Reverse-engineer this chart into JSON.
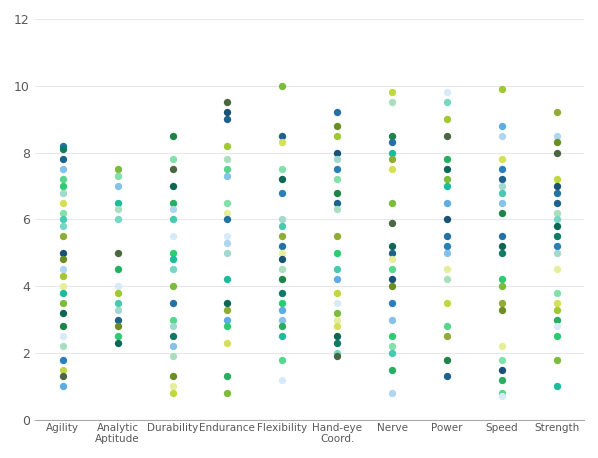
{
  "categories": [
    "Agility",
    "Analytic\nAptitude",
    "Durability",
    "Endurance",
    "Flexibility",
    "Hand-eye\nCoord.",
    "Nerve",
    "Power",
    "Speed",
    "Strength"
  ],
  "background_color": "#ffffff",
  "ylim": [
    0,
    12
  ],
  "yticks": [
    0,
    2,
    4,
    6,
    8,
    10,
    12
  ],
  "dot_size": 28,
  "dot_colors": [
    "#1f6b5e",
    "#217a47",
    "#2ca05a",
    "#3bba8c",
    "#4fc3a1",
    "#6dcfb0",
    "#8edcbf",
    "#b5e8d5",
    "#cef2e0",
    "#d8f0a0",
    "#c0d84a",
    "#a8c832",
    "#8bb520",
    "#6a9c10",
    "#4d7a08",
    "#2e5c04",
    "#1a4020",
    "#0f2e18",
    "#1a5c70",
    "#2080a0",
    "#30a8c8",
    "#50c0d8",
    "#80d8e8",
    "#a8e8f0",
    "#c0f0f8",
    "#4090c0",
    "#2070a0",
    "#104080"
  ],
  "series": {
    "Agility": [
      8.2,
      8.1,
      7.8,
      7.5,
      7.2,
      7.0,
      6.8,
      6.5,
      6.2,
      6.0,
      5.8,
      5.5,
      5.0,
      4.8,
      4.5,
      4.3,
      4.0,
      3.8,
      3.5,
      3.2,
      2.8,
      2.5,
      2.2,
      1.8,
      1.5,
      1.3,
      1.0
    ],
    "Analytic\nAptitude": [
      7.5,
      7.3,
      7.0,
      6.5,
      6.3,
      6.0,
      5.0,
      4.5,
      4.0,
      3.8,
      3.5,
      3.3,
      3.0,
      2.8,
      2.5,
      2.3
    ],
    "Durability": [
      8.5,
      7.8,
      7.5,
      7.0,
      6.5,
      6.3,
      6.0,
      5.5,
      5.0,
      4.8,
      4.5,
      4.0,
      3.5,
      3.0,
      2.8,
      2.5,
      2.2,
      1.9,
      1.3,
      1.0,
      0.8
    ],
    "Endurance": [
      9.5,
      9.2,
      9.0,
      8.2,
      7.8,
      7.5,
      7.3,
      6.5,
      6.2,
      6.0,
      5.5,
      5.3,
      5.0,
      4.2,
      3.5,
      3.3,
      3.0,
      2.8,
      2.3,
      1.3,
      0.8
    ],
    "Flexibility": [
      10.0,
      8.5,
      8.3,
      7.5,
      7.2,
      6.8,
      6.0,
      5.8,
      5.5,
      5.2,
      5.0,
      4.8,
      4.5,
      4.2,
      3.8,
      3.5,
      3.3,
      3.0,
      2.8,
      2.5,
      1.8,
      1.2
    ],
    "Hand-eye\nCoord.": [
      9.2,
      8.8,
      8.5,
      8.0,
      7.8,
      7.5,
      7.2,
      6.8,
      6.5,
      6.3,
      5.5,
      5.0,
      4.5,
      4.2,
      3.8,
      3.5,
      3.2,
      3.0,
      2.8,
      2.5,
      2.3,
      2.0,
      1.9
    ],
    "Nerve": [
      9.8,
      9.5,
      8.5,
      8.3,
      8.0,
      7.8,
      7.5,
      6.5,
      5.9,
      5.2,
      5.0,
      4.8,
      4.5,
      4.2,
      4.0,
      3.5,
      3.0,
      2.5,
      2.2,
      2.0,
      1.5,
      0.8
    ],
    "Power": [
      9.8,
      9.5,
      9.0,
      8.5,
      7.8,
      7.5,
      7.2,
      7.0,
      6.5,
      6.0,
      5.5,
      5.2,
      5.0,
      4.5,
      4.2,
      3.5,
      2.8,
      2.5,
      1.8,
      1.3
    ],
    "Speed": [
      9.9,
      8.8,
      8.5,
      7.8,
      7.5,
      7.2,
      7.0,
      6.8,
      6.5,
      6.2,
      5.5,
      5.2,
      5.0,
      4.2,
      4.0,
      3.5,
      3.3,
      2.2,
      1.8,
      1.5,
      1.2,
      0.8,
      0.7
    ],
    "Strength": [
      9.2,
      8.5,
      8.3,
      8.0,
      7.2,
      7.0,
      6.8,
      6.5,
      6.2,
      6.0,
      5.8,
      5.5,
      5.2,
      5.0,
      4.5,
      3.8,
      3.5,
      3.3,
      3.0,
      2.8,
      2.5,
      1.8,
      1.0
    ]
  }
}
